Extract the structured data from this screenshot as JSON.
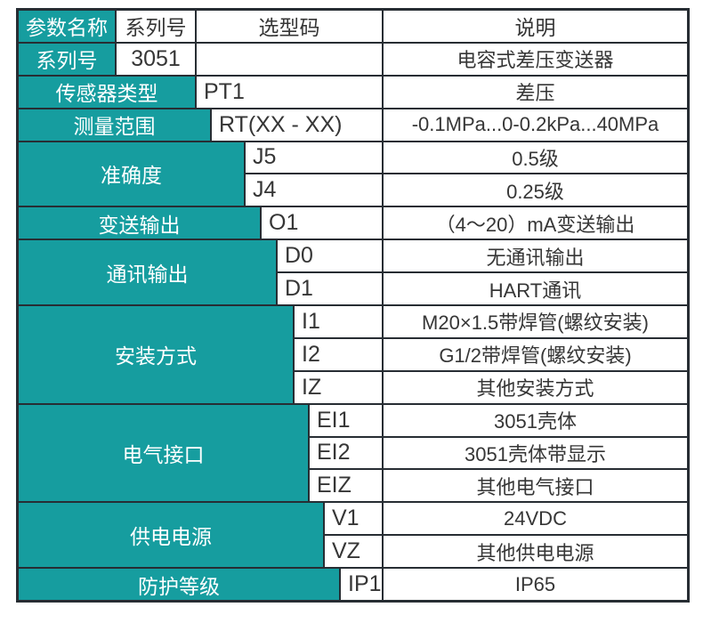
{
  "table": {
    "colors": {
      "accent": "#169d9f",
      "border": "#272d33",
      "text": "#363636",
      "label_text": "#ffffff"
    },
    "header": {
      "param_name": "参数名称",
      "series_no": "系列号",
      "selection_code": "选型码",
      "description": "说明"
    },
    "groups": [
      {
        "label": "系列号",
        "rows": [
          {
            "code": "3051",
            "desc": "电容式差压变送器"
          }
        ]
      },
      {
        "label": "传感器类型",
        "rows": [
          {
            "code": "PT1",
            "desc": "差压"
          }
        ]
      },
      {
        "label": "测量范围",
        "rows": [
          {
            "code": "RT(XX - XX)",
            "desc": "-0.1MPa...0-0.2kPa...40MPa"
          }
        ]
      },
      {
        "label": "准确度",
        "rows": [
          {
            "code": "J5",
            "desc": "0.5级"
          },
          {
            "code": "J4",
            "desc": "0.25级"
          }
        ]
      },
      {
        "label": "变送输出",
        "rows": [
          {
            "code": "O1",
            "desc": "（4～20）mA变送输出"
          }
        ]
      },
      {
        "label": "通讯输出",
        "rows": [
          {
            "code": "D0",
            "desc": "无通讯输出"
          },
          {
            "code": "D1",
            "desc": "HART通讯"
          }
        ]
      },
      {
        "label": "安装方式",
        "rows": [
          {
            "code": "I1",
            "desc": "M20×1.5带焊管(螺纹安装)"
          },
          {
            "code": "I2",
            "desc": "G1/2带焊管(螺纹安装)"
          },
          {
            "code": "IZ",
            "desc": "其他安装方式"
          }
        ]
      },
      {
        "label": "电气接口",
        "rows": [
          {
            "code": "EI1",
            "desc": "3051壳体"
          },
          {
            "code": "EI2",
            "desc": "3051壳体带显示"
          },
          {
            "code": "EIZ",
            "desc": "其他电气接口"
          }
        ]
      },
      {
        "label": "供电电源",
        "rows": [
          {
            "code": "V1",
            "desc": "24VDC"
          },
          {
            "code": "VZ",
            "desc": "其他供电电源"
          }
        ]
      },
      {
        "label": "防护等级",
        "rows": [
          {
            "code": "IP1",
            "desc": "IP65"
          }
        ]
      }
    ]
  }
}
